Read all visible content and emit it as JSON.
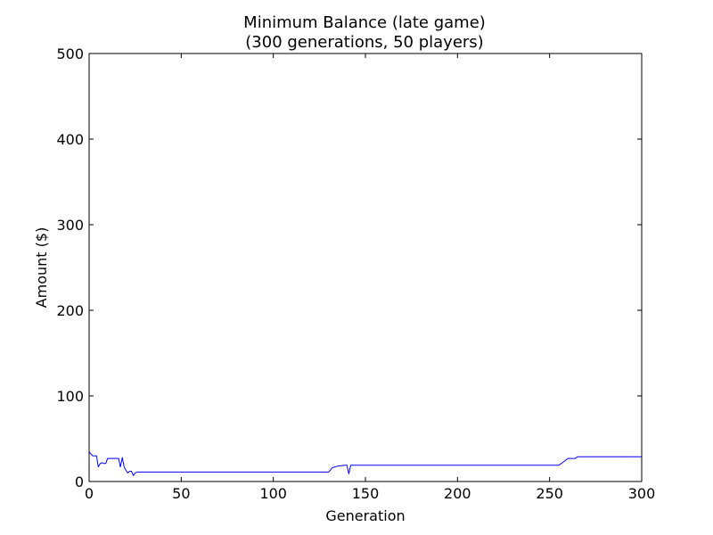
{
  "chart_data": {
    "type": "line",
    "title": "Minimum Balance (late game)",
    "subtitle": "(300 generations, 50 players)",
    "xlabel": "Generation",
    "ylabel": "Amount ($)",
    "xlim": [
      0,
      300
    ],
    "ylim": [
      0,
      500
    ],
    "xticks": [
      0,
      50,
      100,
      150,
      200,
      250,
      300
    ],
    "yticks": [
      0,
      100,
      200,
      300,
      400,
      500
    ],
    "grid": false,
    "line_color": "#0000ff",
    "series": [
      {
        "x": [
          0,
          1,
          2,
          3,
          4,
          5,
          6,
          7,
          8,
          9,
          10,
          11,
          12,
          13,
          14,
          15,
          16,
          17,
          18,
          19,
          20,
          21,
          22,
          23,
          24,
          25,
          26,
          30,
          50,
          100,
          130,
          132,
          135,
          139,
          140,
          141,
          142,
          145,
          200,
          254,
          255,
          257,
          260,
          263,
          264,
          265,
          270,
          300
        ],
        "y": [
          35,
          32,
          30,
          30,
          30,
          17,
          21,
          22,
          21,
          21,
          27,
          27,
          27,
          27,
          27,
          27,
          27,
          17,
          28,
          17,
          13,
          10,
          12,
          12,
          7,
          10,
          11,
          11,
          11,
          11,
          11,
          16,
          18,
          19,
          19,
          9,
          19,
          19,
          19,
          19,
          19,
          22,
          27,
          27,
          27,
          29,
          29,
          29
        ]
      }
    ]
  }
}
